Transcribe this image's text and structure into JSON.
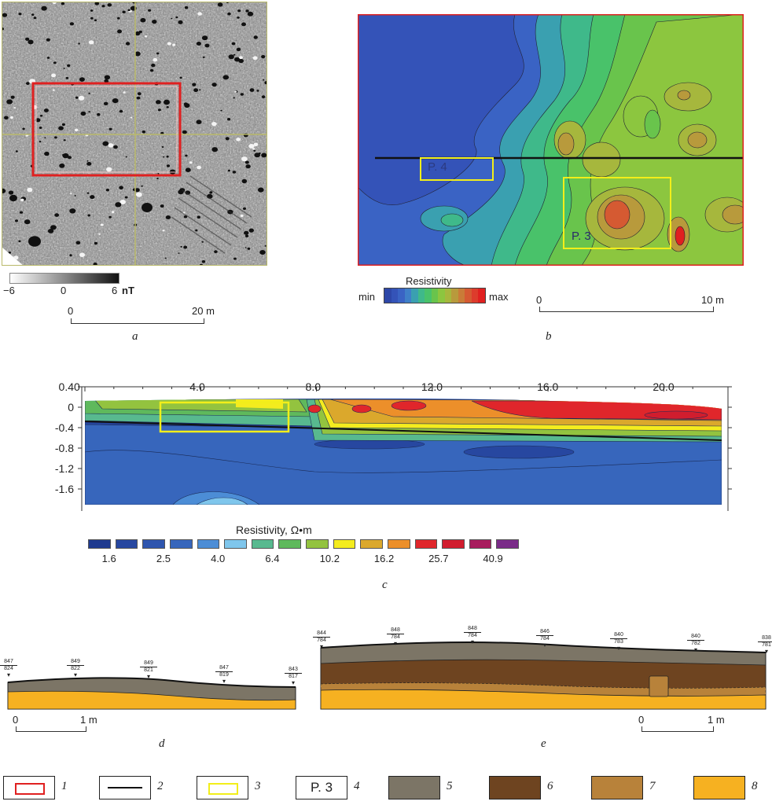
{
  "panel_a": {
    "caption": "a",
    "colorbar": {
      "min_label": "−6",
      "mid_label": "0",
      "max_label": "6",
      "unit": "nT"
    },
    "scale": {
      "start": "0",
      "end": "20 m"
    }
  },
  "panel_b": {
    "caption": "b",
    "colorbar_title": "Resistivity",
    "colorbar_min": "min",
    "colorbar_max": "max",
    "labels": {
      "p4": "P. 4",
      "p3": "P. 3"
    },
    "scale": {
      "start": "0",
      "end": "10 m"
    },
    "colors": [
      "#2d47a8",
      "#3453b8",
      "#3a63c4",
      "#3f7fc8",
      "#3aa0b0",
      "#3fb98a",
      "#49c26a",
      "#69c44c",
      "#8cc63f",
      "#a6b73d",
      "#b89a3c",
      "#c97c38",
      "#d55a32",
      "#dd3c2c",
      "#e02020"
    ]
  },
  "panel_c": {
    "caption": "c",
    "x_ticks": [
      "0",
      "4.0",
      "8.0",
      "12.0",
      "16.0",
      "20.0"
    ],
    "y_ticks": [
      "0.4",
      "0",
      "-0.4",
      "-0.8",
      "-1.2",
      "-1.6"
    ],
    "colorbar_title": "Resistivity, Ω•m",
    "colorbar_labels": [
      "1.6",
      "2.5",
      "4.0",
      "6.4",
      "10.2",
      "16.2",
      "25.7",
      "40.9"
    ],
    "colors": [
      "#1f3a8f",
      "#2747a0",
      "#2e55ae",
      "#3766bc",
      "#4c8dd6",
      "#7fc6ec",
      "#58b98f",
      "#5fb95c",
      "#93c33f",
      "#f4ec1e",
      "#dba82c",
      "#ec8f2a",
      "#e0262b",
      "#d11d2e",
      "#a81c5e",
      "#7a2b88"
    ]
  },
  "panel_d": {
    "caption": "d",
    "scale": {
      "start": "0",
      "end": "1 m"
    },
    "markers": [
      {
        "top": "847",
        "bottom": "824"
      },
      {
        "top": "849",
        "bottom": "822"
      },
      {
        "top": "849",
        "bottom": "821"
      },
      {
        "top": "847",
        "bottom": "819"
      },
      {
        "top": "843",
        "bottom": "817"
      }
    ]
  },
  "panel_e": {
    "caption": "e",
    "scale": {
      "start": "0",
      "end": "1 m"
    },
    "markers": [
      {
        "top": "844",
        "bottom": "784"
      },
      {
        "top": "848",
        "bottom": "784"
      },
      {
        "top": "848",
        "bottom": "784"
      },
      {
        "top": "846",
        "bottom": "784"
      },
      {
        "top": "840",
        "bottom": "783"
      },
      {
        "top": "840",
        "bottom": "782"
      },
      {
        "top": "838",
        "bottom": "781"
      }
    ]
  },
  "legend": {
    "items": [
      {
        "num": "1",
        "text": "",
        "color": "#e02020"
      },
      {
        "num": "2",
        "text": "",
        "color": "#111111"
      },
      {
        "num": "3",
        "text": "",
        "color": "#f2ee1a"
      },
      {
        "num": "4",
        "text": "P. 3",
        "color": "#ffffff"
      },
      {
        "num": "5",
        "text": "",
        "color": "#7c7566"
      },
      {
        "num": "6",
        "text": "",
        "color": "#6e4420"
      },
      {
        "num": "7",
        "text": "",
        "color": "#b8823a"
      },
      {
        "num": "8",
        "text": "",
        "color": "#f6b121"
      }
    ]
  }
}
